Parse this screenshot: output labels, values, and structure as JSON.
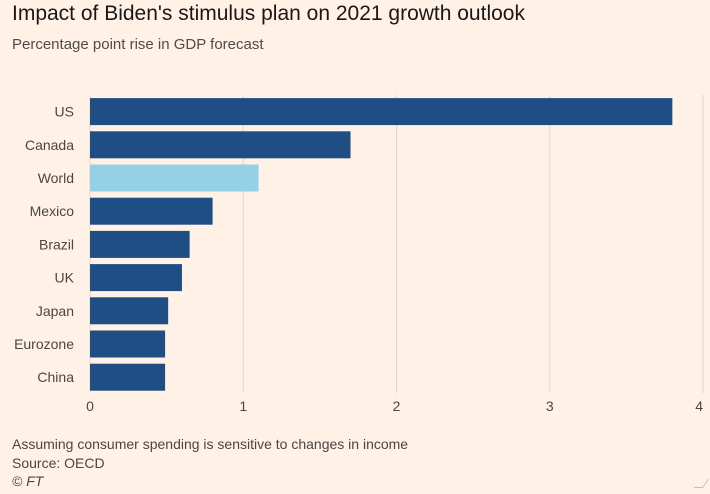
{
  "header": {
    "title": "Impact of Biden's stimulus plan on 2021 growth outlook",
    "subtitle": "Percentage point rise in GDP forecast"
  },
  "chart_data": {
    "type": "bar",
    "orientation": "horizontal",
    "categories": [
      "US",
      "Canada",
      "World",
      "Mexico",
      "Brazil",
      "UK",
      "Japan",
      "Eurozone",
      "China"
    ],
    "values": [
      3.8,
      1.7,
      1.1,
      0.8,
      0.65,
      0.6,
      0.51,
      0.49,
      0.49
    ],
    "highlight": "World",
    "xlim": [
      0,
      4
    ],
    "xticks": [
      0,
      1,
      2,
      3,
      4
    ],
    "grid": true,
    "colors": {
      "bar": "#1f4e85",
      "highlight": "#94d0e6",
      "grid": "#e3d6c9"
    }
  },
  "footer": {
    "note": "Assuming consumer spending is sensitive to changes in income",
    "source": "Source: OECD",
    "credit": "© FT"
  }
}
